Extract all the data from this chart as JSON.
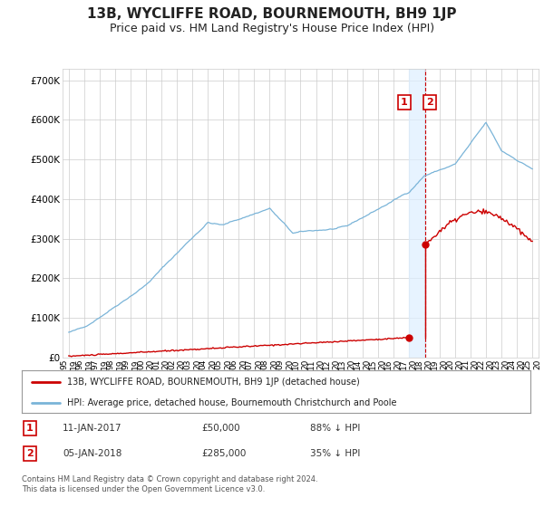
{
  "title": "13B, WYCLIFFE ROAD, BOURNEMOUTH, BH9 1JP",
  "subtitle": "Price paid vs. HM Land Registry's House Price Index (HPI)",
  "title_fontsize": 11,
  "subtitle_fontsize": 9,
  "background_color": "#ffffff",
  "plot_bg_color": "#ffffff",
  "grid_color": "#cccccc",
  "hpi_color": "#7ab4d8",
  "price_color": "#cc0000",
  "annotation_color": "#cc0000",
  "vline_color": "#cc0000",
  "shade_color": "#ddeeff",
  "ylim": [
    0,
    730000
  ],
  "yticks": [
    0,
    100000,
    200000,
    300000,
    400000,
    500000,
    600000,
    700000
  ],
  "ytick_labels": [
    "£0",
    "£100K",
    "£200K",
    "£300K",
    "£400K",
    "£500K",
    "£600K",
    "£700K"
  ],
  "legend_entry1": "13B, WYCLIFFE ROAD, BOURNEMOUTH, BH9 1JP (detached house)",
  "legend_entry2": "HPI: Average price, detached house, Bournemouth Christchurch and Poole",
  "annotation1_date": "11-JAN-2017",
  "annotation1_price": "£50,000",
  "annotation1_pct": "88% ↓ HPI",
  "annotation2_date": "05-JAN-2018",
  "annotation2_price": "£285,000",
  "annotation2_pct": "35% ↓ HPI",
  "footnote": "Contains HM Land Registry data © Crown copyright and database right 2024.\nThis data is licensed under the Open Government Licence v3.0.",
  "sale1_year": 2017.04,
  "sale1_price": 50000,
  "sale2_year": 2018.04,
  "sale2_price": 285000,
  "vline2_year": 2018.04,
  "shade_x1": 2017.04,
  "shade_x2": 2018.04,
  "xlim_left": 1994.6,
  "xlim_right": 2025.4
}
